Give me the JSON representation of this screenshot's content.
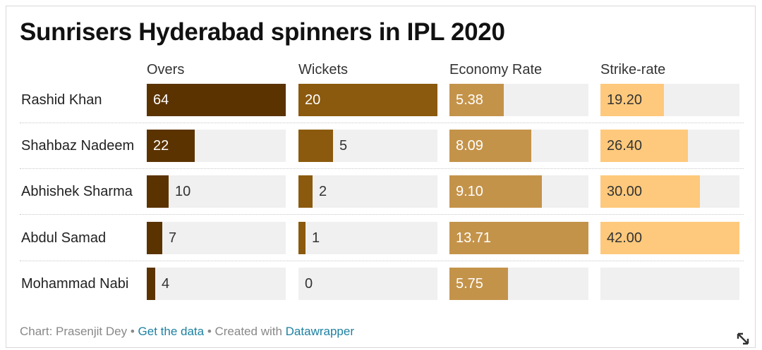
{
  "title": "Sunrisers Hyderabad spinners in IPL 2020",
  "chart_data": {
    "type": "table",
    "title": "Sunrisers Hyderabad spinners in IPL 2020",
    "columns": [
      {
        "key": "overs",
        "label": "Overs",
        "max": 64,
        "color": "#5b3300",
        "text_color": "#ffffff",
        "outside_color": "#333333"
      },
      {
        "key": "wickets",
        "label": "Wickets",
        "max": 20,
        "color": "#8b5a0e",
        "text_color": "#ffffff",
        "outside_color": "#333333"
      },
      {
        "key": "economy",
        "label": "Economy Rate",
        "max": 13.71,
        "color": "#c4934a",
        "text_color": "#ffffff",
        "outside_color": "#333333"
      },
      {
        "key": "strike_rate",
        "label": "Strike-rate",
        "max": 42.0,
        "color": "#fec97c",
        "text_color": "#333333",
        "outside_color": "#333333"
      }
    ],
    "rows": [
      {
        "name": "Rashid Khan",
        "overs": 64,
        "wickets": 20,
        "economy": 5.38,
        "strike_rate": 19.2,
        "labels": {
          "overs": "64",
          "wickets": "20",
          "economy": "5.38",
          "strike_rate": "19.20"
        }
      },
      {
        "name": "Shahbaz Nadeem",
        "overs": 22,
        "wickets": 5,
        "economy": 8.09,
        "strike_rate": 26.4,
        "labels": {
          "overs": "22",
          "wickets": "5",
          "economy": "8.09",
          "strike_rate": "26.40"
        }
      },
      {
        "name": "Abhishek Sharma",
        "overs": 10,
        "wickets": 2,
        "economy": 9.1,
        "strike_rate": 30.0,
        "labels": {
          "overs": "10",
          "wickets": "2",
          "economy": "9.10",
          "strike_rate": "30.00"
        }
      },
      {
        "name": "Abdul Samad",
        "overs": 7,
        "wickets": 1,
        "economy": 13.71,
        "strike_rate": 42.0,
        "labels": {
          "overs": "7",
          "wickets": "1",
          "economy": "13.71",
          "strike_rate": "42.00"
        }
      },
      {
        "name": "Mohammad Nabi",
        "overs": 4,
        "wickets": 0,
        "economy": 5.75,
        "strike_rate": null,
        "labels": {
          "overs": "4",
          "wickets": "0",
          "economy": "5.75",
          "strike_rate": ""
        }
      }
    ]
  },
  "footer": {
    "prefix": "Chart: Prasenjit Dey • ",
    "get_data": "Get the data",
    "middle": " • Created with ",
    "tool": "Datawrapper"
  },
  "icons": {
    "expand": "expand-icon"
  }
}
